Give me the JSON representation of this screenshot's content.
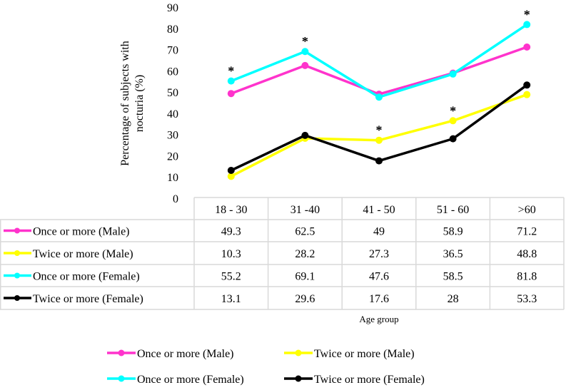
{
  "chart_data": {
    "type": "line",
    "title": "",
    "xlabel": "Age group",
    "ylabel_lines": [
      "Percentage of subjects with",
      "nocturia (%)"
    ],
    "ylim": [
      0,
      90
    ],
    "yticks": [
      0,
      10,
      20,
      30,
      40,
      50,
      60,
      70,
      80,
      90
    ],
    "grid": false,
    "categories": [
      "18 - 30",
      "31 -40",
      "41 - 50",
      "51 - 60",
      ">60"
    ],
    "series": [
      {
        "name": "Once or more (Male)",
        "color": "#ff33cc",
        "values": [
          49.3,
          62.5,
          49,
          58.9,
          71.2
        ],
        "labels": [
          "49.3",
          "62.5",
          "49",
          "58.9",
          "71.2"
        ]
      },
      {
        "name": "Twice or more (Male)",
        "color": "#ffff00",
        "values": [
          10.3,
          28.2,
          27.3,
          36.5,
          48.8
        ],
        "labels": [
          "10.3",
          "28.2",
          "27.3",
          "36.5",
          "48.8"
        ]
      },
      {
        "name": "Once or more (Female)",
        "color": "#00ffff",
        "values": [
          55.2,
          69.1,
          47.6,
          58.5,
          81.8
        ],
        "labels": [
          "55.2",
          "69.1",
          "47.6",
          "58.5",
          "81.8"
        ]
      },
      {
        "name": "Twice or more (Female)",
        "color": "#000000",
        "values": [
          13.1,
          29.6,
          17.6,
          28,
          53.3
        ],
        "labels": [
          "13.1",
          "29.6",
          "17.6",
          "28",
          "53.3"
        ]
      }
    ],
    "annotations": [
      {
        "category": "18 - 30",
        "value": 55.2,
        "text": "*"
      },
      {
        "category": "31 -40",
        "value": 69.1,
        "text": "*"
      },
      {
        "category": "41 - 50",
        "value": 27.3,
        "text": "*"
      },
      {
        "category": "51 - 60",
        "value": 36.5,
        "text": "*"
      },
      {
        "category": ">60",
        "value": 81.8,
        "text": "*"
      }
    ],
    "legend_position": "bottom",
    "data_table": true
  }
}
